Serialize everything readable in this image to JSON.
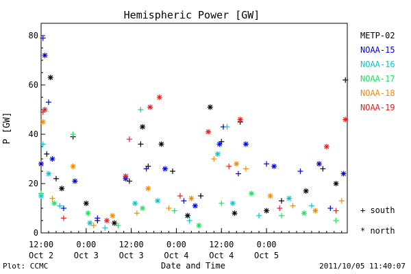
{
  "chart_data": {
    "type": "scatter",
    "title": "Hemispheric Power [GW]",
    "xlabel": "Date and Time",
    "ylabel": "P [GW]",
    "ylim": [
      0,
      85
    ],
    "xlim": [
      "2011-10-02 12:00",
      "2011-10-05 21:30"
    ],
    "x_ticks": [
      {
        "x": "2011-10-02 12:00",
        "time": "12:00",
        "date": "Oct 2"
      },
      {
        "x": "2011-10-03 00:00",
        "time": "0:00",
        "date": "Oct 3"
      },
      {
        "x": "2011-10-03 12:00",
        "time": "12:00",
        "date": "Oct 3"
      },
      {
        "x": "2011-10-04 00:00",
        "time": "0:00",
        "date": "Oct 4"
      },
      {
        "x": "2011-10-04 12:00",
        "time": "12:00",
        "date": "Oct 4"
      },
      {
        "x": "2011-10-05 00:00",
        "time": "0:00",
        "date": "Oct 5"
      }
    ],
    "y_ticks": [
      0,
      20,
      40,
      60,
      80
    ],
    "grid": false,
    "legend_position": "right",
    "marker_legend": [
      {
        "symbol": "+",
        "label": "south"
      },
      {
        "symbol": "*",
        "label": "north"
      }
    ],
    "series": [
      {
        "name": "METP-02",
        "color": "#000000",
        "points": [
          {
            "x": "2011-10-02 13:30",
            "y": 32,
            "m": "+"
          },
          {
            "x": "2011-10-02 14:30",
            "y": 63,
            "m": "*"
          },
          {
            "x": "2011-10-02 16:00",
            "y": 22,
            "m": "+"
          },
          {
            "x": "2011-10-02 17:30",
            "y": 18,
            "m": "*"
          },
          {
            "x": "2011-10-02 20:30",
            "y": 39,
            "m": "+"
          },
          {
            "x": "2011-10-03 00:00",
            "y": 12,
            "m": "*"
          },
          {
            "x": "2011-10-03 03:00",
            "y": 5,
            "m": "+"
          },
          {
            "x": "2011-10-03 07:30",
            "y": 4,
            "m": "*"
          },
          {
            "x": "2011-10-03 11:30",
            "y": 21,
            "m": "+"
          },
          {
            "x": "2011-10-03 14:30",
            "y": 36,
            "m": "+"
          },
          {
            "x": "2011-10-03 15:00",
            "y": 43,
            "m": "*"
          },
          {
            "x": "2011-10-03 16:30",
            "y": 27,
            "m": "+"
          },
          {
            "x": "2011-10-03 20:00",
            "y": 36,
            "m": "*"
          },
          {
            "x": "2011-10-03 23:00",
            "y": 25,
            "m": "+"
          },
          {
            "x": "2011-10-04 03:00",
            "y": 7,
            "m": "*"
          },
          {
            "x": "2011-10-04 06:30",
            "y": 15,
            "m": "+"
          },
          {
            "x": "2011-10-04 09:00",
            "y": 51,
            "m": "*"
          },
          {
            "x": "2011-10-04 12:00",
            "y": 37,
            "m": "+"
          },
          {
            "x": "2011-10-04 15:30",
            "y": 8,
            "m": "*"
          },
          {
            "x": "2011-10-04 17:00",
            "y": 45,
            "m": "+"
          },
          {
            "x": "2011-10-05 00:00",
            "y": 9,
            "m": "*"
          },
          {
            "x": "2011-10-05 04:00",
            "y": 13,
            "m": "+"
          },
          {
            "x": "2011-10-05 10:30",
            "y": 17,
            "m": "*"
          },
          {
            "x": "2011-10-05 15:00",
            "y": 26,
            "m": "+"
          },
          {
            "x": "2011-10-05 18:30",
            "y": 20,
            "m": "*"
          },
          {
            "x": "2011-10-05 21:00",
            "y": 62,
            "m": "+"
          }
        ]
      },
      {
        "name": "NOAA-15",
        "color": "#0000d8",
        "points": [
          {
            "x": "2011-10-02 12:00",
            "y": 28,
            "m": "*"
          },
          {
            "x": "2011-10-02 12:30",
            "y": 79,
            "m": "+"
          },
          {
            "x": "2011-10-02 13:00",
            "y": 72,
            "m": "*"
          },
          {
            "x": "2011-10-02 14:00",
            "y": 53,
            "m": "+"
          },
          {
            "x": "2011-10-02 15:00",
            "y": 30,
            "m": "*"
          },
          {
            "x": "2011-10-02 18:00",
            "y": 10,
            "m": "+"
          },
          {
            "x": "2011-10-02 21:00",
            "y": 21,
            "m": "*"
          },
          {
            "x": "2011-10-03 03:00",
            "y": 6,
            "m": "+"
          },
          {
            "x": "2011-10-03 10:30",
            "y": 22,
            "m": "*"
          },
          {
            "x": "2011-10-03 16:00",
            "y": 26,
            "m": "+"
          },
          {
            "x": "2011-10-03 21:00",
            "y": 26,
            "m": "*"
          },
          {
            "x": "2011-10-04 02:00",
            "y": 13,
            "m": "+"
          },
          {
            "x": "2011-10-04 05:00",
            "y": 11,
            "m": "*"
          },
          {
            "x": "2011-10-04 11:30",
            "y": 36,
            "m": "*"
          },
          {
            "x": "2011-10-04 12:30",
            "y": 43,
            "m": "+"
          },
          {
            "x": "2011-10-04 16:30",
            "y": 24,
            "m": "+"
          },
          {
            "x": "2011-10-04 18:30",
            "y": 36,
            "m": "*"
          },
          {
            "x": "2011-10-05 00:00",
            "y": 28,
            "m": "+"
          },
          {
            "x": "2011-10-05 02:00",
            "y": 27,
            "m": "*"
          },
          {
            "x": "2011-10-05 09:00",
            "y": 25,
            "m": "+"
          },
          {
            "x": "2011-10-05 14:00",
            "y": 28,
            "m": "*"
          },
          {
            "x": "2011-10-05 17:00",
            "y": 10,
            "m": "+"
          },
          {
            "x": "2011-10-05 20:30",
            "y": 24,
            "m": "*"
          }
        ]
      },
      {
        "name": "NOAA-16",
        "color": "#00c8d0",
        "points": [
          {
            "x": "2011-10-02 12:00",
            "y": 15,
            "m": "*"
          },
          {
            "x": "2011-10-02 12:30",
            "y": 36,
            "m": "+"
          },
          {
            "x": "2011-10-02 14:00",
            "y": 24,
            "m": "*"
          },
          {
            "x": "2011-10-02 17:00",
            "y": 11,
            "m": "+"
          },
          {
            "x": "2011-10-03 01:00",
            "y": 4,
            "m": "*"
          },
          {
            "x": "2011-10-03 05:00",
            "y": 2,
            "m": "+"
          },
          {
            "x": "2011-10-03 13:00",
            "y": 12,
            "m": "*"
          },
          {
            "x": "2011-10-03 14:30",
            "y": 50,
            "m": "+"
          },
          {
            "x": "2011-10-03 19:00",
            "y": 13,
            "m": "*"
          },
          {
            "x": "2011-10-04 03:30",
            "y": 5,
            "m": "+"
          },
          {
            "x": "2011-10-04 11:00",
            "y": 32,
            "m": "*"
          },
          {
            "x": "2011-10-04 13:30",
            "y": 43,
            "m": "+"
          },
          {
            "x": "2011-10-04 15:00",
            "y": 12,
            "m": "*"
          },
          {
            "x": "2011-10-04 22:00",
            "y": 7,
            "m": "+"
          },
          {
            "x": "2011-10-05 06:00",
            "y": 14,
            "m": "*"
          },
          {
            "x": "2011-10-05 12:00",
            "y": 11,
            "m": "+"
          }
        ]
      },
      {
        "name": "NOAA-17",
        "color": "#20e060",
        "points": [
          {
            "x": "2011-10-02 12:00",
            "y": 16,
            "m": "+"
          },
          {
            "x": "2011-10-02 15:30",
            "y": 12,
            "m": "*"
          },
          {
            "x": "2011-10-02 20:30",
            "y": 40,
            "m": "+"
          },
          {
            "x": "2011-10-03 00:30",
            "y": 8,
            "m": "*"
          },
          {
            "x": "2011-10-03 08:30",
            "y": 3,
            "m": "+"
          },
          {
            "x": "2011-10-03 15:00",
            "y": 10,
            "m": "*"
          },
          {
            "x": "2011-10-03 23:30",
            "y": 9,
            "m": "+"
          },
          {
            "x": "2011-10-04 06:00",
            "y": 3,
            "m": "*"
          },
          {
            "x": "2011-10-04 12:00",
            "y": 12,
            "m": "+"
          },
          {
            "x": "2011-10-04 20:00",
            "y": 16,
            "m": "*"
          },
          {
            "x": "2011-10-05 04:00",
            "y": 7,
            "m": "+"
          },
          {
            "x": "2011-10-05 10:00",
            "y": 8,
            "m": "*"
          },
          {
            "x": "2011-10-05 18:30",
            "y": 5,
            "m": "+"
          }
        ]
      },
      {
        "name": "NOAA-18",
        "color": "#f08c00",
        "points": [
          {
            "x": "2011-10-02 12:30",
            "y": 45,
            "m": "*"
          },
          {
            "x": "2011-10-02 15:00",
            "y": 14,
            "m": "+"
          },
          {
            "x": "2011-10-02 20:30",
            "y": 27,
            "m": "*"
          },
          {
            "x": "2011-10-03 02:00",
            "y": 3,
            "m": "+"
          },
          {
            "x": "2011-10-03 07:00",
            "y": 7,
            "m": "*"
          },
          {
            "x": "2011-10-03 13:30",
            "y": 8,
            "m": "+"
          },
          {
            "x": "2011-10-03 16:30",
            "y": 18,
            "m": "*"
          },
          {
            "x": "2011-10-03 22:00",
            "y": 10,
            "m": "+"
          },
          {
            "x": "2011-10-04 04:00",
            "y": 14,
            "m": "*"
          },
          {
            "x": "2011-10-04 10:00",
            "y": 30,
            "m": "+"
          },
          {
            "x": "2011-10-04 16:00",
            "y": 28,
            "m": "*"
          },
          {
            "x": "2011-10-04 18:30",
            "y": 26,
            "m": "+"
          },
          {
            "x": "2011-10-05 01:00",
            "y": 15,
            "m": "*"
          },
          {
            "x": "2011-10-05 07:00",
            "y": 11,
            "m": "+"
          },
          {
            "x": "2011-10-05 13:00",
            "y": 9,
            "m": "*"
          },
          {
            "x": "2011-10-05 20:00",
            "y": 13,
            "m": "+"
          }
        ]
      },
      {
        "name": "NOAA-19",
        "color": "#e02020",
        "points": [
          {
            "x": "2011-10-02 12:30",
            "y": 49,
            "m": "+"
          },
          {
            "x": "2011-10-02 13:00",
            "y": 50,
            "m": "*"
          },
          {
            "x": "2011-10-02 18:00",
            "y": 6,
            "m": "+"
          },
          {
            "x": "2011-10-03 05:30",
            "y": 5,
            "m": "*"
          },
          {
            "x": "2011-10-03 10:30",
            "y": 23,
            "m": "*"
          },
          {
            "x": "2011-10-03 11:30",
            "y": 38,
            "m": "+"
          },
          {
            "x": "2011-10-03 17:00",
            "y": 51,
            "m": "*"
          },
          {
            "x": "2011-10-03 19:30",
            "y": 55,
            "m": "*"
          },
          {
            "x": "2011-10-04 01:00",
            "y": 15,
            "m": "+"
          },
          {
            "x": "2011-10-04 08:30",
            "y": 41,
            "m": "*"
          },
          {
            "x": "2011-10-04 14:00",
            "y": 27,
            "m": "+"
          },
          {
            "x": "2011-10-04 17:00",
            "y": 46,
            "m": "*"
          },
          {
            "x": "2011-10-05 03:30",
            "y": 10,
            "m": "+"
          },
          {
            "x": "2011-10-05 16:00",
            "y": 35,
            "m": "*"
          },
          {
            "x": "2011-10-05 18:30",
            "y": 9,
            "m": "+"
          },
          {
            "x": "2011-10-05 21:00",
            "y": 46,
            "m": "*"
          }
        ]
      }
    ]
  },
  "footer": {
    "left": "Plot: CCMC",
    "right": "2011/10/05 11:40:07"
  }
}
